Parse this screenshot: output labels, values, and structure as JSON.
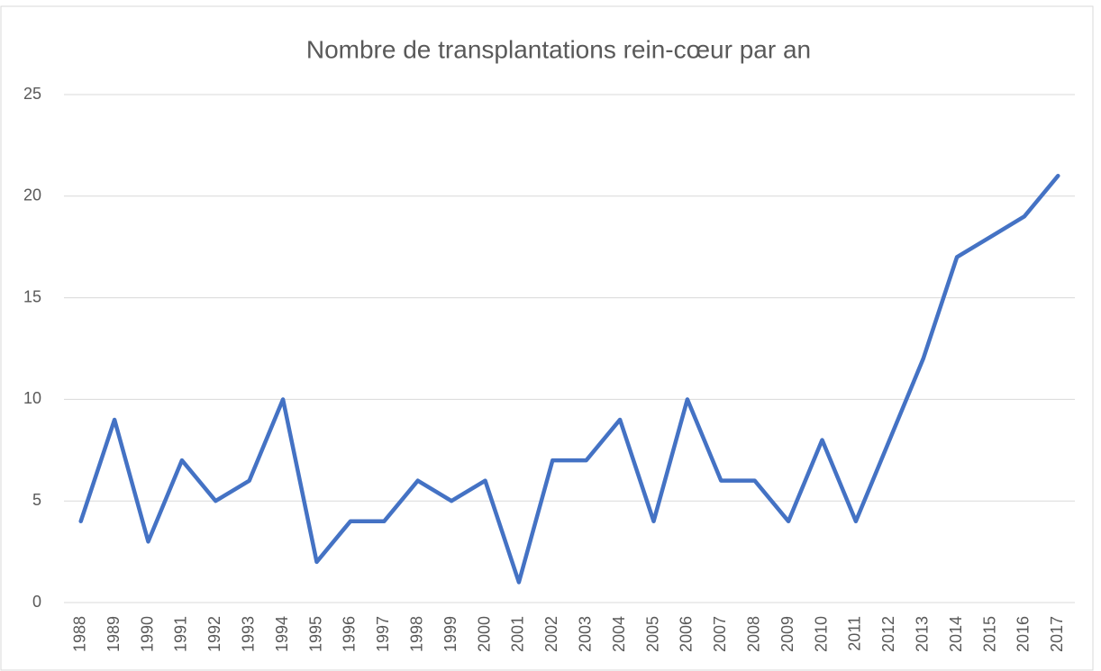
{
  "chart_data": {
    "type": "line",
    "title": "Nombre de transplantations rein-cœur par an",
    "categories": [
      "1988",
      "1989",
      "1990",
      "1991",
      "1992",
      "1993",
      "1994",
      "1995",
      "1996",
      "1997",
      "1998",
      "1999",
      "2000",
      "2001",
      "2002",
      "2003",
      "2004",
      "2005",
      "2006",
      "2007",
      "2008",
      "2009",
      "2010",
      "2011",
      "2012",
      "2013",
      "2014",
      "2015",
      "2016",
      "2017"
    ],
    "values": [
      4,
      9,
      3,
      7,
      5,
      6,
      10,
      2,
      4,
      4,
      6,
      5,
      6,
      1,
      7,
      7,
      9,
      4,
      10,
      6,
      6,
      4,
      8,
      4,
      8,
      12,
      17,
      18,
      19,
      21
    ],
    "color": "#4472c4",
    "ylim": [
      0,
      25
    ],
    "yticks": [
      0,
      5,
      10,
      15,
      20,
      25
    ],
    "grid": true
  }
}
